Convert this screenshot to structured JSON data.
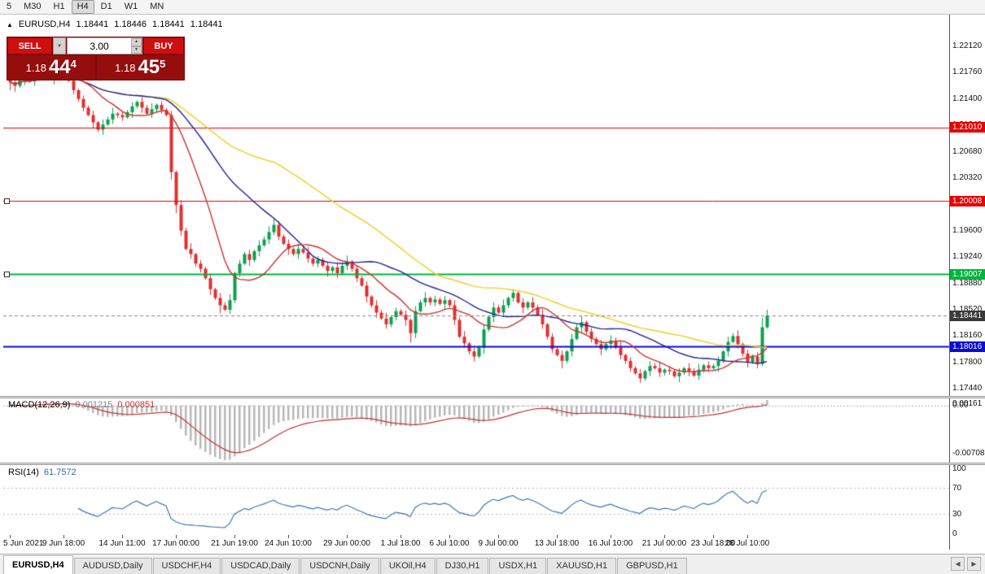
{
  "toolbar": {
    "active": "H4",
    "timeframes": [
      "5",
      "M30",
      "H1",
      "H4",
      "D1",
      "W1",
      "MN"
    ]
  },
  "icons": {
    "title_marker": "▲",
    "dropdown": "▼",
    "spin_up": "▲",
    "spin_down": "▼",
    "tab_left": "◀",
    "tab_right": "▶"
  },
  "chart_header": {
    "symbol": "EURUSD,H4",
    "open": "1.18441",
    "high": "1.18446",
    "low": "1.18441",
    "close": "1.18441"
  },
  "trade_panel": {
    "sell_label": "SELL",
    "buy_label": "BUY",
    "volume": "3.00",
    "sell_price": {
      "figure": "1.18",
      "pips": "44",
      "point": "4"
    },
    "buy_price": {
      "figure": "1.18",
      "pips": "45",
      "point": "5"
    }
  },
  "price_axis": [
    "1.22120",
    "1.21760",
    "1.21400",
    "1.21040",
    "1.20680",
    "1.20320",
    "1.19960",
    "1.19600",
    "1.19240",
    "1.18880",
    "1.18520",
    "1.18160",
    "1.17800",
    "1.17440"
  ],
  "hlines": [
    {
      "label": "1.21010",
      "price": 1.2101,
      "color": "#e60000",
      "width": 1,
      "handles": false
    },
    {
      "label": "1.20008",
      "price": 1.20008,
      "color": "#e60000",
      "width": 1,
      "handles": true
    },
    {
      "label": "1.19007",
      "price": 1.19007,
      "color": "#00b43c",
      "width": 2,
      "handles": true
    },
    {
      "label": "1.18016",
      "price": 1.18016,
      "color": "#0a0ad2",
      "width": 2,
      "handles": false
    }
  ],
  "bid": {
    "label": "1.18441",
    "price": 1.18441,
    "color": "#3a3a3a"
  },
  "chart_data": {
    "type": "candlestick",
    "symbol": "EURUSD",
    "timeframe": "H4",
    "y_axis": {
      "top_price": 1.22553,
      "bottom_price": 1.17341
    },
    "colors": {
      "up": "#0aa050",
      "down": "#e03030"
    },
    "closes": [
      1.2163,
      1.2158,
      1.2166,
      1.2171,
      1.2164,
      1.2169,
      1.2175,
      1.218,
      1.2173,
      1.2168,
      1.2178,
      1.2175,
      1.2165,
      1.2152,
      1.214,
      1.2128,
      1.2118,
      1.2108,
      1.2098,
      1.2105,
      1.2112,
      1.212,
      1.2118,
      1.2115,
      1.2122,
      1.213,
      1.2136,
      1.2128,
      1.212,
      1.2126,
      1.2132,
      1.2125,
      1.2118,
      1.204,
      1.1995,
      1.196,
      1.1935,
      1.1928,
      1.1915,
      1.1908,
      1.1895,
      1.188,
      1.1868,
      1.1858,
      1.1852,
      1.1865,
      1.1902,
      1.1915,
      1.1928,
      1.192,
      1.1932,
      1.194,
      1.1948,
      1.1958,
      1.1968,
      1.1952,
      1.1942,
      1.1935,
      1.1928,
      1.1935,
      1.193,
      1.1922,
      1.1915,
      1.192,
      1.1912,
      1.1905,
      1.191,
      1.1902,
      1.1912,
      1.1918,
      1.1908,
      1.1895,
      1.1885,
      1.187,
      1.1858,
      1.1848,
      1.184,
      1.1832,
      1.1842,
      1.185,
      1.1845,
      1.1838,
      1.182,
      1.185,
      1.1862,
      1.1868,
      1.1862,
      1.1866,
      1.186,
      1.1865,
      1.1858,
      1.1838,
      1.1815,
      1.1806,
      1.1795,
      1.1788,
      1.18,
      1.1825,
      1.1842,
      1.1855,
      1.1848,
      1.1858,
      1.1868,
      1.1875,
      1.1862,
      1.1855,
      1.1862,
      1.1855,
      1.1845,
      1.1832,
      1.1815,
      1.1798,
      1.179,
      1.1782,
      1.1795,
      1.1812,
      1.1828,
      1.1835,
      1.1822,
      1.1812,
      1.1805,
      1.1798,
      1.1805,
      1.181,
      1.18,
      1.179,
      1.1782,
      1.1772,
      1.1765,
      1.1758,
      1.1768,
      1.1775,
      1.1772,
      1.1766,
      1.177,
      1.1768,
      1.1761,
      1.1766,
      1.1772,
      1.1768,
      1.1762,
      1.177,
      1.1776,
      1.1772,
      1.1775,
      1.1782,
      1.1795,
      1.1808,
      1.1816,
      1.1805,
      1.1792,
      1.178,
      1.1788,
      1.1778,
      1.1828,
      1.18441
    ],
    "wick_pattern": [
      3,
      6,
      2,
      7,
      4,
      8,
      2,
      5
    ],
    "candle_overrides": {
      "0": {
        "o": 1.2196,
        "h": 1.2218,
        "l": 1.2152
      },
      "33": {
        "l": 1.203
      },
      "34": {
        "l": 1.1984
      },
      "43": {
        "l": 1.1847
      },
      "54": {
        "h": 1.1977
      },
      "82": {
        "l": 1.1807
      },
      "95": {
        "l": 1.1781
      },
      "113": {
        "l": 1.1772
      },
      "129": {
        "l": 1.1752
      },
      "151": {
        "l": 1.1773
      },
      "153": {
        "l": 1.1772
      },
      "154": {
        "h": 1.1841
      },
      "155": {
        "h": 1.1852,
        "l": 1.1826
      }
    },
    "x_labels": [
      {
        "text": "5 Jun 2021",
        "i": 0
      },
      {
        "text": "9 Jun 18:00",
        "i": 11
      },
      {
        "text": "14 Jun 11:00",
        "i": 23
      },
      {
        "text": "17 Jun 00:00",
        "i": 34
      },
      {
        "text": "21 Jun 19:00",
        "i": 46
      },
      {
        "text": "24 Jun 10:00",
        "i": 57
      },
      {
        "text": "29 Jun 00:00",
        "i": 69
      },
      {
        "text": "1 Jul 18:00",
        "i": 80
      },
      {
        "text": "6 Jul 10:00",
        "i": 90
      },
      {
        "text": "9 Jul 00:00",
        "i": 100
      },
      {
        "text": "13 Jul 18:00",
        "i": 112
      },
      {
        "text": "16 Jul 10:00",
        "i": 123
      },
      {
        "text": "21 Jul 00:00",
        "i": 134
      },
      {
        "text": "23 Jul 18:00",
        "i": 144
      },
      {
        "text": "28 Jul 10:00",
        "i": 151
      }
    ],
    "moving_averages": [
      {
        "period": 55,
        "color": "#f2cd1e"
      },
      {
        "period": 30,
        "color": "#20209a"
      },
      {
        "period": 12,
        "color": "#cc3333"
      }
    ],
    "indicators": [
      {
        "name": "MACD",
        "label": "MACD(12,26,9)",
        "values": [
          "0.001215",
          "0.000851"
        ],
        "axis_labels": [
          "0.00161",
          "0.00",
          "-0.00708"
        ],
        "histogram_color": "#b8b8b8",
        "signal_color": "#c03030"
      },
      {
        "name": "RSI",
        "label": "RSI(14)",
        "value": "61.7572",
        "axis_labels": [
          "100",
          "70",
          "30",
          "0"
        ],
        "levels": [
          70,
          30
        ],
        "color": "#3c78be"
      }
    ]
  },
  "tabs": [
    {
      "label": "EURUSD,H4",
      "active": true
    },
    {
      "label": "AUDUSD,Daily",
      "active": false
    },
    {
      "label": "USDCHF,H4",
      "active": false
    },
    {
      "label": "USDCAD,Daily",
      "active": false
    },
    {
      "label": "USDCNH,Daily",
      "active": false
    },
    {
      "label": "UKOil,H4",
      "active": false
    },
    {
      "label": "DJ30,H1",
      "active": false
    },
    {
      "label": "USDX,H1",
      "active": false
    },
    {
      "label": "XAUUSD,H1",
      "active": false
    },
    {
      "label": "GBPUSD,H1",
      "active": false
    }
  ]
}
